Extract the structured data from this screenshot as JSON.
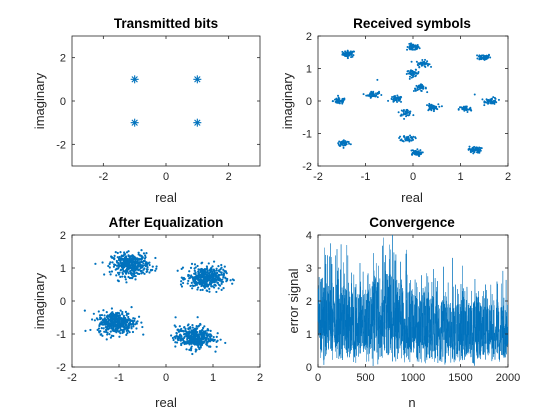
{
  "figure": {
    "colors": {
      "marker": "#0072BD",
      "axis": "#262626",
      "background": "#ffffff"
    }
  },
  "chart_data": [
    {
      "id": "transmitted",
      "type": "scatter",
      "title": "Transmitted bits",
      "xlabel": "real",
      "ylabel": "imaginary",
      "xlim": [
        -3,
        3
      ],
      "ylim": [
        -3,
        3
      ],
      "xticks": [
        -2,
        0,
        2
      ],
      "yticks": [
        -2,
        0,
        2
      ],
      "marker": "asterisk",
      "points": [
        [
          -1,
          1
        ],
        [
          1,
          1
        ],
        [
          -1,
          -1
        ],
        [
          1,
          -1
        ]
      ]
    },
    {
      "id": "received",
      "type": "scatter",
      "title": "Received symbols",
      "xlabel": "real",
      "ylabel": "imaginary",
      "xlim": [
        -2,
        2
      ],
      "ylim": [
        -2,
        2
      ],
      "xticks": [
        -2,
        -1,
        0,
        1,
        2
      ],
      "yticks": [
        -2,
        -1,
        0,
        1,
        2
      ],
      "marker": "dot",
      "clusters": [
        {
          "center": [
            -1.35,
            1.45
          ],
          "count": 55
        },
        {
          "center": [
            0.0,
            1.65
          ],
          "count": 55
        },
        {
          "center": [
            1.5,
            1.35
          ],
          "count": 55
        },
        {
          "center": [
            0.2,
            1.15
          ],
          "count": 45
        },
        {
          "center": [
            -0.85,
            0.2
          ],
          "count": 45
        },
        {
          "center": [
            0.0,
            0.85
          ],
          "count": 45
        },
        {
          "center": [
            0.15,
            0.4
          ],
          "count": 40
        },
        {
          "center": [
            -1.55,
            0.0
          ],
          "count": 55
        },
        {
          "center": [
            -0.35,
            0.05
          ],
          "count": 45
        },
        {
          "center": [
            1.65,
            0.0
          ],
          "count": 55
        },
        {
          "center": [
            -0.15,
            -0.35
          ],
          "count": 40
        },
        {
          "center": [
            0.4,
            -0.2
          ],
          "count": 45
        },
        {
          "center": [
            1.1,
            -0.25
          ],
          "count": 45
        },
        {
          "center": [
            -1.45,
            -1.3
          ],
          "count": 55
        },
        {
          "center": [
            -0.1,
            -1.15
          ],
          "count": 45
        },
        {
          "center": [
            0.05,
            -1.6
          ],
          "count": 55
        },
        {
          "center": [
            1.3,
            -1.5
          ],
          "count": 55
        }
      ],
      "outliers": [
        [
          -0.75,
          0.65
        ],
        [
          1.3,
          0.2
        ]
      ]
    },
    {
      "id": "equalized",
      "type": "scatter",
      "title": "After Equalization",
      "xlabel": "real",
      "ylabel": "imaginary",
      "xlim": [
        -2,
        2
      ],
      "ylim": [
        -2,
        2
      ],
      "xticks": [
        -2,
        -1,
        0,
        1,
        2
      ],
      "yticks": [
        -2,
        -1,
        0,
        1,
        2
      ],
      "marker": "dot",
      "clusters": [
        {
          "center": [
            -0.75,
            1.1
          ],
          "count": 400
        },
        {
          "center": [
            0.85,
            0.7
          ],
          "count": 400
        },
        {
          "center": [
            -1.05,
            -0.65
          ],
          "count": 400
        },
        {
          "center": [
            0.6,
            -1.1
          ],
          "count": 400
        }
      ]
    },
    {
      "id": "convergence",
      "type": "line",
      "title": "Convergence",
      "xlabel": "n",
      "ylabel": "error signal",
      "xlim": [
        0,
        2000
      ],
      "ylim": [
        0,
        4
      ],
      "xticks": [
        0,
        500,
        1000,
        1500,
        2000
      ],
      "yticks": [
        0,
        1,
        2,
        3,
        4
      ],
      "n_points": 2000,
      "envelope": [
        [
          0,
          2.7
        ],
        [
          200,
          2.5
        ],
        [
          500,
          2.4
        ],
        [
          700,
          2.9
        ],
        [
          1000,
          2.2
        ],
        [
          1500,
          2.0
        ],
        [
          2000,
          1.9
        ]
      ]
    }
  ]
}
